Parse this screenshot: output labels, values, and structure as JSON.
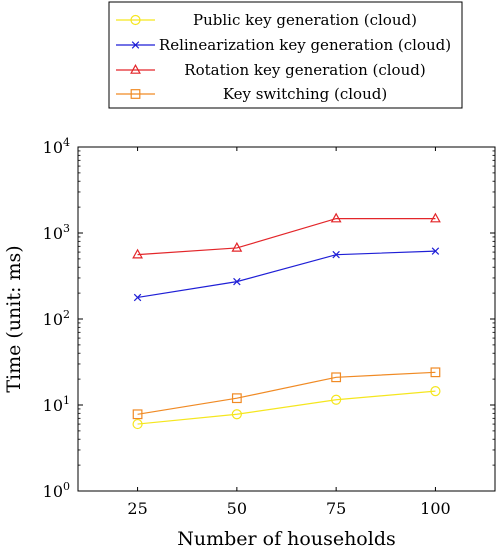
{
  "chart_data": {
    "type": "line",
    "title": "",
    "xlabel": "Number of households",
    "ylabel": "Time (unit: ms)",
    "x": [
      25,
      50,
      75,
      100
    ],
    "x_ticks": [
      "25",
      "50",
      "75",
      "100"
    ],
    "xlim": [
      10,
      115
    ],
    "y_scale": "log",
    "ylim": [
      1,
      10000
    ],
    "y_ticks": [
      {
        "base": "10",
        "exp": "0"
      },
      {
        "base": "10",
        "exp": "1"
      },
      {
        "base": "10",
        "exp": "2"
      },
      {
        "base": "10",
        "exp": "3"
      },
      {
        "base": "10",
        "exp": "4"
      }
    ],
    "grid": false,
    "legend_position": "top-center, above plot",
    "series": [
      {
        "name": "Public key generation (cloud)",
        "color": "#f5e61e",
        "marker": "circle",
        "values": [
          6,
          7.8,
          11.5,
          14.5
        ]
      },
      {
        "name": "Relinearization key generation (cloud)",
        "color": "#1f1fd6",
        "marker": "x",
        "values": [
          178,
          272,
          560,
          615
        ]
      },
      {
        "name": "Rotation key generation (cloud)",
        "color": "#e3262a",
        "marker": "triangle",
        "values": [
          560,
          670,
          1470,
          1470
        ]
      },
      {
        "name": "Key switching (cloud)",
        "color": "#f08a24",
        "marker": "square",
        "values": [
          7.8,
          12,
          21,
          24
        ]
      }
    ]
  }
}
